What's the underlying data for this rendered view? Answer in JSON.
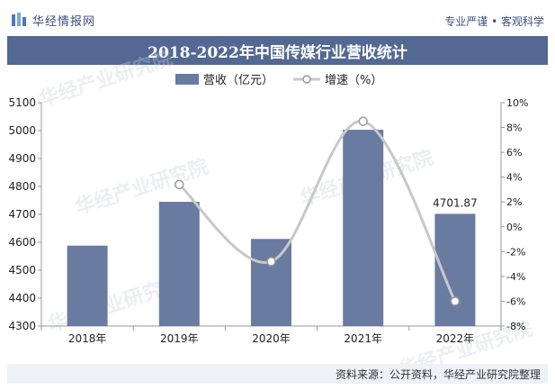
{
  "header": {
    "logo_text": "华经情报网",
    "tagline": "专业严谨 • 客观科学"
  },
  "title": "2018-2022年中国传媒行业营收统计",
  "source": "资料来源：公开资料，华经产业研究院整理",
  "watermark": "华经产业研究院",
  "colors": {
    "bar": "#6a7ba1",
    "line": "#c8c8c8",
    "title_band": "#536893"
  },
  "chart_data": {
    "type": "bar+line",
    "categories": [
      "2018年",
      "2019年",
      "2020年",
      "2021年",
      "2022年"
    ],
    "series": [
      {
        "name": "营收（亿元）",
        "type": "bar",
        "axis": "left",
        "values": [
          4588,
          4745,
          4612,
          5003,
          4701.87
        ],
        "data_labels": [
          "",
          "",
          "",
          "",
          "4701.87"
        ]
      },
      {
        "name": "增速（%）",
        "type": "line",
        "axis": "right",
        "values": [
          null,
          3.4,
          -2.8,
          8.5,
          -6.0
        ]
      }
    ],
    "y_left": {
      "min": 4300,
      "max": 5100,
      "ticks": [
        "4300",
        "4400",
        "4500",
        "4600",
        "4700",
        "4800",
        "4900",
        "5000",
        "5100"
      ]
    },
    "y_right": {
      "min": -8,
      "max": 10,
      "ticks": [
        "-8%",
        "-6%",
        "-4%",
        "-2%",
        "0%",
        "2%",
        "4%",
        "6%",
        "8%",
        "10%"
      ]
    },
    "legend_position": "top-center",
    "grid": false
  }
}
